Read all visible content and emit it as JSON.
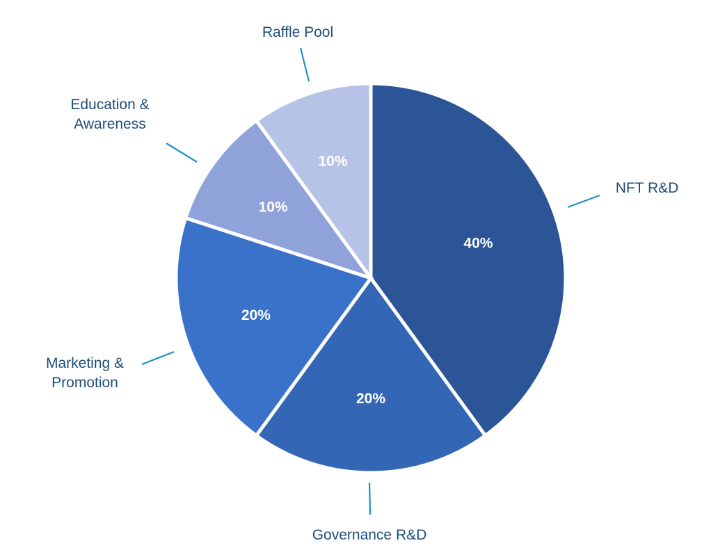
{
  "chart_data": {
    "type": "pie",
    "title": "",
    "categories": [
      "NFT R&D",
      "Governance R&D",
      "Marketing & Promotion",
      "Education & Awareness",
      "Raffle Pool"
    ],
    "label_lines": [
      [
        "NFT R&D"
      ],
      [
        "Governance R&D"
      ],
      [
        "Marketing &",
        "Promotion"
      ],
      [
        "Education &",
        "Awareness"
      ],
      [
        "Raffle Pool"
      ]
    ],
    "values": [
      40,
      20,
      20,
      10,
      10
    ],
    "value_labels": [
      "40%",
      "20%",
      "20%",
      "10%",
      "10%"
    ],
    "colors": [
      "#2b5597",
      "#3366b5",
      "#3a72ca",
      "#8fa3da",
      "#b6c3e6"
    ],
    "start_angle": "12 o'clock",
    "direction": "clockwise",
    "legend": "none"
  }
}
